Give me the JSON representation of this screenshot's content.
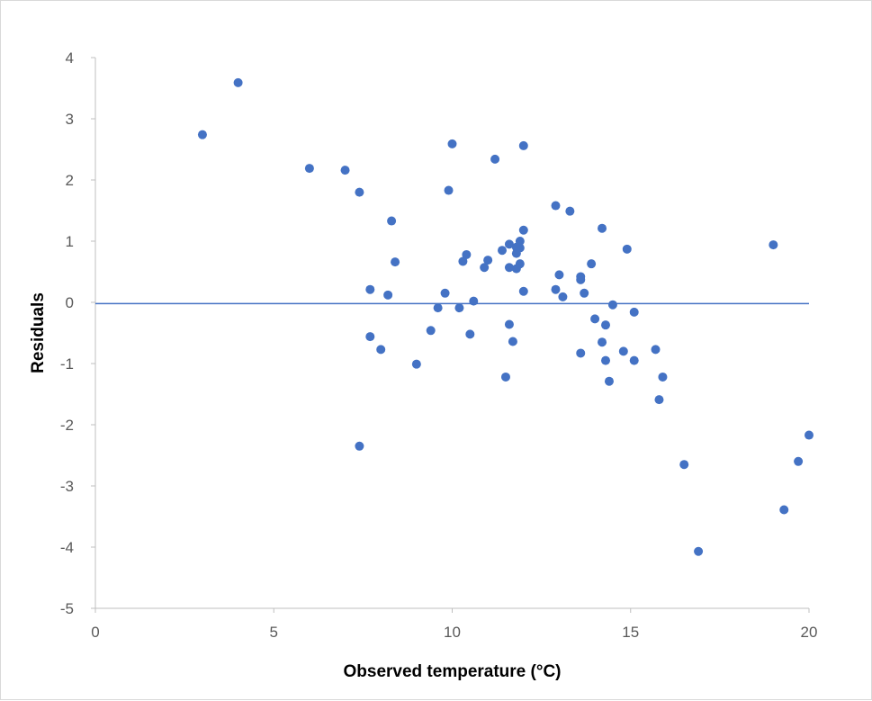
{
  "chart_data": {
    "type": "scatter",
    "title": "",
    "xlabel": "Observed temperature (°C)",
    "ylabel": "Residuals",
    "xlim": [
      0,
      20
    ],
    "ylim": [
      -5,
      4
    ],
    "x_ticks": [
      0,
      5,
      10,
      15,
      20
    ],
    "y_ticks": [
      4,
      3,
      2,
      1,
      0,
      -1,
      -2,
      -3,
      -4,
      -5
    ],
    "x_tick_labels": [
      "0",
      "5",
      "10",
      "15",
      "20"
    ],
    "y_tick_labels": [
      "4",
      "3",
      "2",
      "1",
      "0",
      "-1",
      "-2",
      "-3",
      "-4",
      "-5"
    ],
    "grid": false,
    "legend": "none",
    "marker_color": "#4472C4",
    "reference_line": {
      "y": -0.02,
      "color": "#4472C4"
    },
    "points": [
      {
        "x": 3.0,
        "y": 2.74
      },
      {
        "x": 4.0,
        "y": 3.59
      },
      {
        "x": 6.0,
        "y": 2.19
      },
      {
        "x": 7.0,
        "y": 2.16
      },
      {
        "x": 7.4,
        "y": 1.8
      },
      {
        "x": 7.4,
        "y": -2.35
      },
      {
        "x": 7.7,
        "y": 0.21
      },
      {
        "x": 7.7,
        "y": -0.56
      },
      {
        "x": 8.0,
        "y": -0.77
      },
      {
        "x": 8.2,
        "y": 0.12
      },
      {
        "x": 8.3,
        "y": 1.33
      },
      {
        "x": 8.4,
        "y": 0.66
      },
      {
        "x": 9.0,
        "y": -1.01
      },
      {
        "x": 9.4,
        "y": -0.46
      },
      {
        "x": 9.6,
        "y": -0.09
      },
      {
        "x": 9.8,
        "y": 0.15
      },
      {
        "x": 9.9,
        "y": 1.83
      },
      {
        "x": 10.0,
        "y": 2.59
      },
      {
        "x": 10.2,
        "y": -0.09
      },
      {
        "x": 10.3,
        "y": 0.67
      },
      {
        "x": 10.4,
        "y": 0.78
      },
      {
        "x": 10.5,
        "y": -0.52
      },
      {
        "x": 10.6,
        "y": 0.02
      },
      {
        "x": 10.9,
        "y": 0.57
      },
      {
        "x": 11.0,
        "y": 0.69
      },
      {
        "x": 11.2,
        "y": 2.34
      },
      {
        "x": 11.4,
        "y": 0.85
      },
      {
        "x": 11.5,
        "y": -1.22
      },
      {
        "x": 11.6,
        "y": 0.95
      },
      {
        "x": 11.6,
        "y": 0.57
      },
      {
        "x": 11.6,
        "y": -0.36
      },
      {
        "x": 11.7,
        "y": -0.64
      },
      {
        "x": 11.8,
        "y": 0.8
      },
      {
        "x": 11.8,
        "y": 0.55
      },
      {
        "x": 11.8,
        "y": 0.9
      },
      {
        "x": 11.9,
        "y": 1.0
      },
      {
        "x": 11.9,
        "y": 0.63
      },
      {
        "x": 11.9,
        "y": 0.89
      },
      {
        "x": 12.0,
        "y": 1.18
      },
      {
        "x": 12.0,
        "y": 0.18
      },
      {
        "x": 12.0,
        "y": 2.56
      },
      {
        "x": 12.9,
        "y": 1.58
      },
      {
        "x": 12.9,
        "y": 0.21
      },
      {
        "x": 13.0,
        "y": 0.45
      },
      {
        "x": 13.1,
        "y": 0.09
      },
      {
        "x": 13.3,
        "y": 1.49
      },
      {
        "x": 13.6,
        "y": 0.37
      },
      {
        "x": 13.6,
        "y": 0.42
      },
      {
        "x": 13.6,
        "y": -0.83
      },
      {
        "x": 13.7,
        "y": 0.15
      },
      {
        "x": 13.9,
        "y": 0.63
      },
      {
        "x": 14.0,
        "y": -0.27
      },
      {
        "x": 14.2,
        "y": 1.21
      },
      {
        "x": 14.2,
        "y": -0.65
      },
      {
        "x": 14.3,
        "y": -0.37
      },
      {
        "x": 14.3,
        "y": -0.95
      },
      {
        "x": 14.4,
        "y": -1.29
      },
      {
        "x": 14.5,
        "y": -0.04
      },
      {
        "x": 14.8,
        "y": -0.8
      },
      {
        "x": 14.9,
        "y": 0.87
      },
      {
        "x": 15.1,
        "y": -0.95
      },
      {
        "x": 15.1,
        "y": -0.16
      },
      {
        "x": 15.7,
        "y": -0.77
      },
      {
        "x": 15.8,
        "y": -1.59
      },
      {
        "x": 15.9,
        "y": -1.22
      },
      {
        "x": 16.5,
        "y": -2.65
      },
      {
        "x": 16.9,
        "y": -4.07
      },
      {
        "x": 19.0,
        "y": 0.94
      },
      {
        "x": 19.3,
        "y": -3.39
      },
      {
        "x": 19.7,
        "y": -2.6
      },
      {
        "x": 20.0,
        "y": -2.17
      }
    ]
  }
}
